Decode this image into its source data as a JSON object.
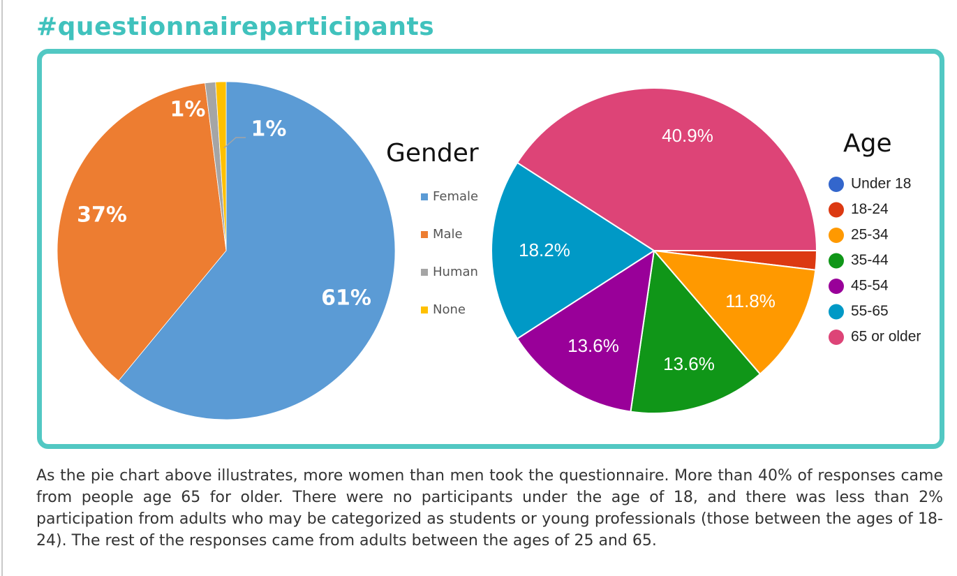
{
  "page": {
    "title": "#questionnaireparticipants",
    "caption": "As the pie chart above illustrates, more women than men took the questionnaire. More than 40% of responses came from people age 65 for older. There were no participants under the age of 18, and there was less than 2% participation from adults who may be categorized as students or young professionals (those between the ages of 18-24). The rest of the responses came from adults between the ages of 25 and 65."
  },
  "chart_data": [
    {
      "type": "pie",
      "title": "Gender",
      "legend_position": "right",
      "slices": [
        {
          "label": "Female",
          "value": 61,
          "display": "61%",
          "color": "#5b9bd5"
        },
        {
          "label": "Male",
          "value": 37,
          "display": "37%",
          "color": "#ed7d31"
        },
        {
          "label": "Human",
          "value": 1,
          "display": "1%",
          "color": "#a5a5a5"
        },
        {
          "label": "None",
          "value": 1,
          "display": "1%",
          "color": "#ffc000"
        }
      ]
    },
    {
      "type": "pie",
      "title": "Age",
      "legend_position": "right",
      "slices": [
        {
          "label": "Under 18",
          "value": 0,
          "display": "",
          "color": "#3366cc"
        },
        {
          "label": "18-24",
          "value": 1.9,
          "display": "",
          "color": "#dc3912"
        },
        {
          "label": "25-34",
          "value": 11.8,
          "display": "11.8%",
          "color": "#ff9900"
        },
        {
          "label": "35-44",
          "value": 13.6,
          "display": "13.6%",
          "color": "#109618"
        },
        {
          "label": "45-54",
          "value": 13.6,
          "display": "13.6%",
          "color": "#990099"
        },
        {
          "label": "55-65",
          "value": 18.2,
          "display": "18.2%",
          "color": "#0099c6"
        },
        {
          "label": "65 or older",
          "value": 40.9,
          "display": "40.9%",
          "color": "#dd4477"
        }
      ]
    }
  ]
}
